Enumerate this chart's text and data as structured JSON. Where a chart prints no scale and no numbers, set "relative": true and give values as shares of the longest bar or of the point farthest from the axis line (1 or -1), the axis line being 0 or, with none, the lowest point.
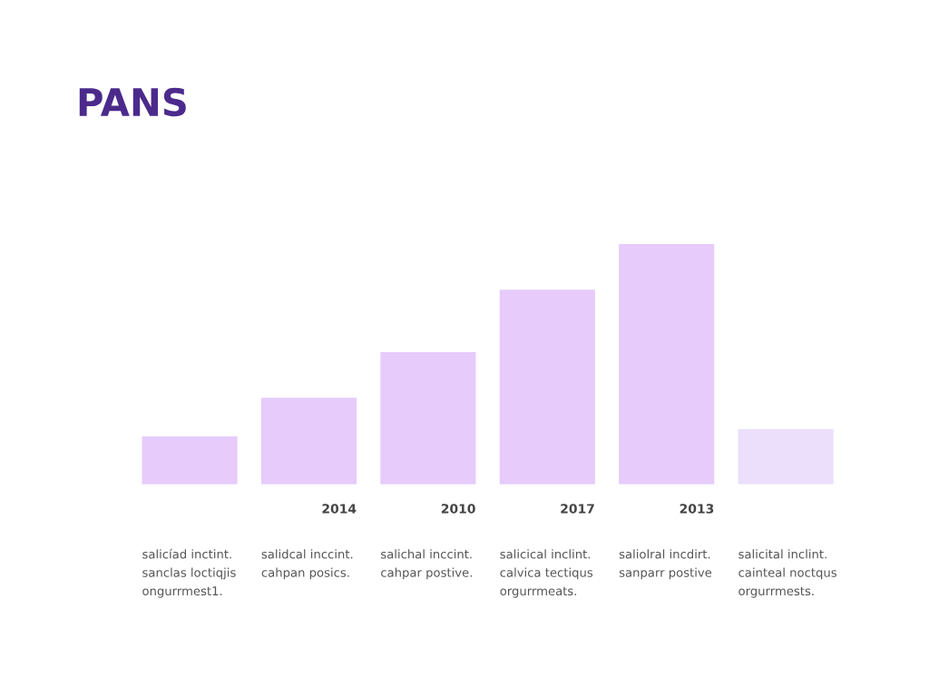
{
  "chart_data": {
    "type": "bar",
    "title": "PANS",
    "relative": true,
    "categories": [
      null,
      "2014",
      "2010",
      "2017",
      "2013",
      null
    ],
    "values": [
      0.2,
      0.36,
      0.55,
      0.81,
      1,
      0.23
    ],
    "colors": [
      "#e6cbfb",
      "#e6cbfb",
      "#e6cbfb",
      "#e6cbfb",
      "#e6cbfb",
      "#ebdffb"
    ],
    "annotations": [
      "salicíad inctint.\nsanclas loctiqjis\nongurrmest1.",
      "salidcal inccint.\ncahpan posics.",
      "salichal inccint.\ncahpar postive.",
      "salicical inclint.\ncalvica tectiqus\norgurrmeats.",
      "saliolral incdirt.\nsanparr postive",
      "salicital inclint.\ncainteal noctqus\norgurrmests."
    ]
  }
}
